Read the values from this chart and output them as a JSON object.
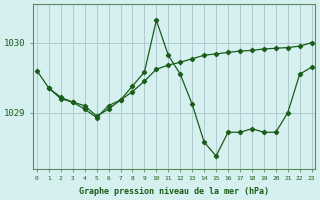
{
  "title": "Graphe pression niveau de la mer (hPa)",
  "background_color": "#d6f0f0",
  "plot_bg_color": "#d6f0f0",
  "grid_color": "#b0c8d0",
  "line_color": "#1a5c1a",
  "xlim": [
    -0.3,
    23.3
  ],
  "ylim": [
    1028.2,
    1030.55
  ],
  "yticks": [
    1029,
    1030
  ],
  "xticks": [
    0,
    1,
    2,
    3,
    4,
    5,
    6,
    7,
    8,
    9,
    10,
    11,
    12,
    13,
    14,
    15,
    16,
    17,
    18,
    19,
    20,
    21,
    22,
    23
  ],
  "series1_x": [
    0,
    1,
    2,
    3,
    4,
    5,
    6,
    7,
    8,
    9,
    10,
    11,
    12,
    13,
    14,
    15,
    16,
    17,
    18,
    19,
    20,
    21,
    22,
    23
  ],
  "series1_y": [
    1029.6,
    1029.35,
    1029.2,
    1029.15,
    1029.05,
    1028.93,
    1029.1,
    1029.18,
    1029.38,
    1029.58,
    1030.32,
    1029.82,
    1029.55,
    1029.12,
    1028.58,
    1028.38,
    1028.72,
    1028.72,
    1028.77,
    1028.72,
    1028.72,
    1029.0,
    1029.55,
    1029.65
  ],
  "series2_x": [
    1,
    2,
    3,
    4,
    5,
    6,
    7,
    8,
    9,
    10,
    11,
    12,
    13,
    14,
    15,
    16,
    17,
    18,
    19,
    20,
    21,
    22,
    23
  ],
  "series2_y": [
    1029.35,
    1029.22,
    1029.15,
    1029.1,
    1028.95,
    1029.05,
    1029.18,
    1029.3,
    1029.45,
    1029.62,
    1029.68,
    1029.72,
    1029.77,
    1029.82,
    1029.84,
    1029.86,
    1029.88,
    1029.89,
    1029.91,
    1029.92,
    1029.93,
    1029.95,
    1030.0
  ]
}
